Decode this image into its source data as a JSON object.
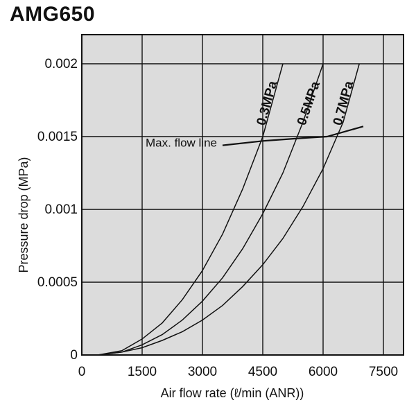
{
  "chart_data": {
    "type": "line",
    "title": "AMG650",
    "xlabel": "Air flow rate (ℓ/min (ANR))",
    "ylabel": "Pressure drop (MPa)",
    "xlim": [
      0,
      8000
    ],
    "ylim": [
      0,
      0.0022
    ],
    "grid": true,
    "x_ticks": [
      0,
      1500,
      3000,
      4500,
      6000,
      7500
    ],
    "x_tick_labels": [
      "0",
      "1500",
      "3000",
      "4500",
      "6000",
      "7500"
    ],
    "y_ticks": [
      0,
      0.0005,
      0.001,
      0.0015,
      0.002
    ],
    "y_tick_labels": [
      "0",
      "0.0005",
      "0.001",
      "0.0015",
      "0.002"
    ],
    "series": [
      {
        "name": "0.3MPa",
        "x": [
          400,
          1000,
          1500,
          2000,
          2500,
          3000,
          3500,
          4000,
          4500,
          5000
        ],
        "y": [
          0,
          3e-05,
          0.00011,
          0.00022,
          0.00038,
          0.00058,
          0.00083,
          0.00114,
          0.0015,
          0.002
        ]
      },
      {
        "name": "0.5MPa",
        "x": [
          400,
          1000,
          1500,
          2000,
          2500,
          3000,
          3500,
          4000,
          4500,
          5000,
          5500,
          6000
        ],
        "y": [
          0,
          2e-05,
          7e-05,
          0.00014,
          0.00024,
          0.00037,
          0.00053,
          0.00073,
          0.00097,
          0.00125,
          0.0016,
          0.002
        ]
      },
      {
        "name": "0.7MPa",
        "x": [
          400,
          1000,
          1500,
          2000,
          2500,
          3000,
          3500,
          4000,
          4500,
          5000,
          5500,
          6000,
          6500,
          6900
        ],
        "y": [
          0,
          2e-05,
          5e-05,
          0.0001,
          0.00016,
          0.00024,
          0.00034,
          0.00047,
          0.00062,
          0.0008,
          0.00102,
          0.00128,
          0.0016,
          0.002
        ]
      }
    ],
    "max_flow_line": {
      "label": "Max. flow line",
      "x": [
        3500,
        4500,
        5500,
        6100,
        7000
      ],
      "y": [
        0.00144,
        0.00147,
        0.00149,
        0.0015,
        0.00157
      ]
    }
  }
}
